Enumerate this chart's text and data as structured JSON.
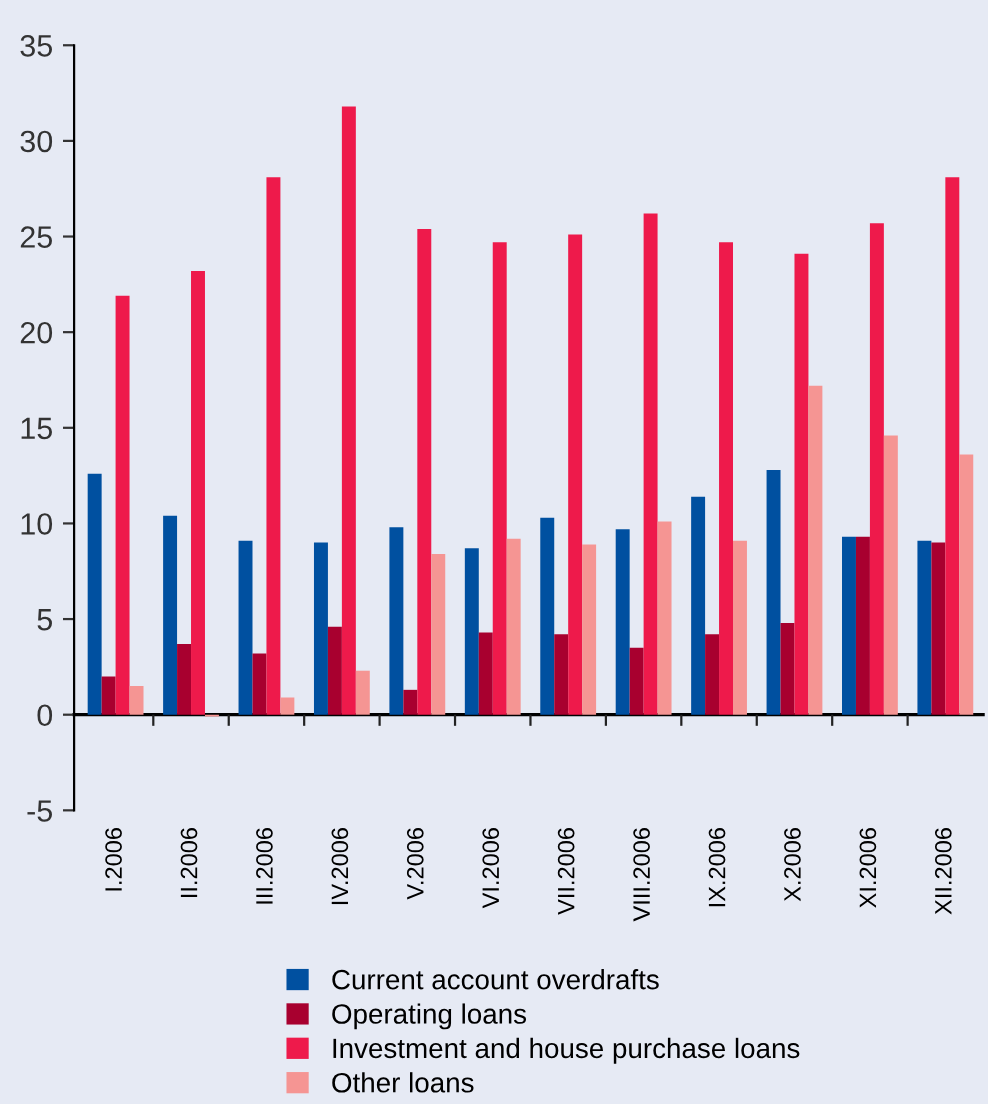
{
  "chart_data": {
    "type": "bar",
    "categories": [
      "I.2006",
      "II.2006",
      "III.2006",
      "IV.2006",
      "V.2006",
      "VI.2006",
      "VII.2006",
      "VIII.2006",
      "IX.2006",
      "X.2006",
      "XI.2006",
      "XII.2006"
    ],
    "series": [
      {
        "name": "Current account overdrafts",
        "color": "#0050a0",
        "values": [
          12.6,
          10.4,
          9.1,
          9.0,
          9.8,
          8.7,
          10.3,
          9.7,
          11.4,
          12.8,
          9.3,
          9.1
        ]
      },
      {
        "name": "Operating loans",
        "color": "#a8002f",
        "values": [
          2.0,
          3.7,
          3.2,
          4.6,
          1.3,
          4.3,
          4.2,
          3.5,
          4.2,
          4.8,
          9.3,
          9.0
        ]
      },
      {
        "name": "Investment and house purchase loans",
        "color": "#ee1a4b",
        "values": [
          21.9,
          23.2,
          28.1,
          31.8,
          25.4,
          24.7,
          25.1,
          26.2,
          24.7,
          24.1,
          25.7,
          28.1
        ]
      },
      {
        "name": "Other loans",
        "color": "#f59593",
        "values": [
          1.5,
          -0.1,
          0.9,
          2.3,
          8.4,
          9.2,
          8.9,
          10.1,
          9.1,
          17.2,
          14.6,
          13.6
        ]
      }
    ],
    "ylim": [
      -5,
      35
    ],
    "yticks": [
      -5,
      0,
      5,
      10,
      15,
      20,
      25,
      30,
      35
    ],
    "legend": "bottom"
  }
}
